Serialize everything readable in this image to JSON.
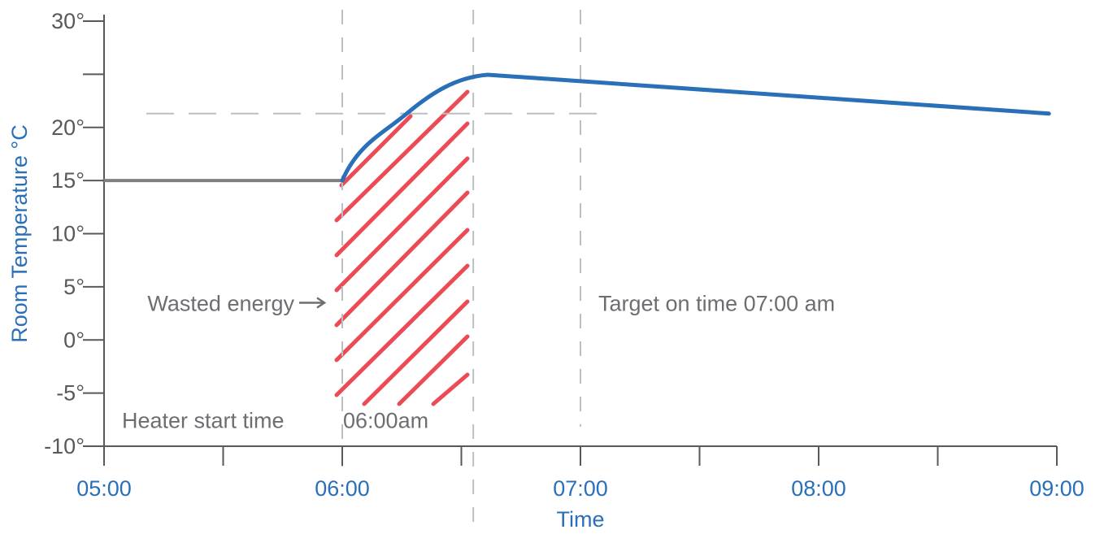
{
  "chart_data": {
    "type": "line",
    "xlabel": "Time",
    "ylabel": "Room Temperature °C",
    "xlim": [
      "05:00",
      "09:00"
    ],
    "ylim": [
      -10,
      30
    ],
    "x_ticks": [
      "05:00",
      "06:00",
      "07:00",
      "08:00",
      "09:00"
    ],
    "x_minor_ticks": [
      "05:30",
      "06:30",
      "07:30",
      "08:30"
    ],
    "y_ticks": [
      -10,
      -5,
      0,
      5,
      10,
      15,
      20,
      25,
      30
    ],
    "y_tick_labels": [
      "-10°",
      "-5°",
      "0°",
      "5°",
      "10°",
      "15°",
      "20°",
      "",
      "30°"
    ],
    "series": [
      {
        "color": "#808080",
        "x": [
          "05:00",
          "06:00"
        ],
        "y": [
          15,
          15
        ]
      },
      {
        "color": "#2a70b8",
        "x": [
          "06:00",
          "06:05",
          "06:10",
          "06:15",
          "06:20",
          "06:25",
          "06:30",
          "06:33",
          "06:36",
          "06:40",
          "08:58"
        ],
        "y": [
          15,
          15.3,
          16.5,
          17.8,
          19.0,
          20.0,
          20.7,
          21.0,
          21.2,
          21.3,
          21.3
        ]
      }
    ],
    "reference_lines": [
      {
        "orientation": "horizontal",
        "y": 21.3,
        "from": "05:00",
        "to": "09:00",
        "style": "dashed"
      },
      {
        "orientation": "vertical",
        "x": "06:00",
        "style": "dashed"
      },
      {
        "orientation": "vertical",
        "x": "06:33",
        "style": "dashed"
      },
      {
        "orientation": "vertical",
        "x": "07:00",
        "style": "dashed"
      }
    ],
    "hatched_region": {
      "x_start": "06:00",
      "x_end": "06:33",
      "color": "#ec4a55"
    },
    "annotations": [
      {
        "text": "Wasted energy",
        "arrow": true,
        "x": "06:00",
        "y": 3.5
      },
      {
        "text": "Target on time 07:00 am",
        "x": "07:00",
        "y": 3.5
      },
      {
        "text": "Heater start time",
        "x": "05:00",
        "y": -7.5
      },
      {
        "text": "06:00am",
        "x": "06:00",
        "y": -7.5
      }
    ],
    "grid": false,
    "legend": "none"
  },
  "colors": {
    "axis": "#58595b",
    "blue": "#2a70b8",
    "gray_series": "#808080",
    "dash": "#bcbec0",
    "hatch": "#ec4a55",
    "annotation": "#6d6e71"
  }
}
